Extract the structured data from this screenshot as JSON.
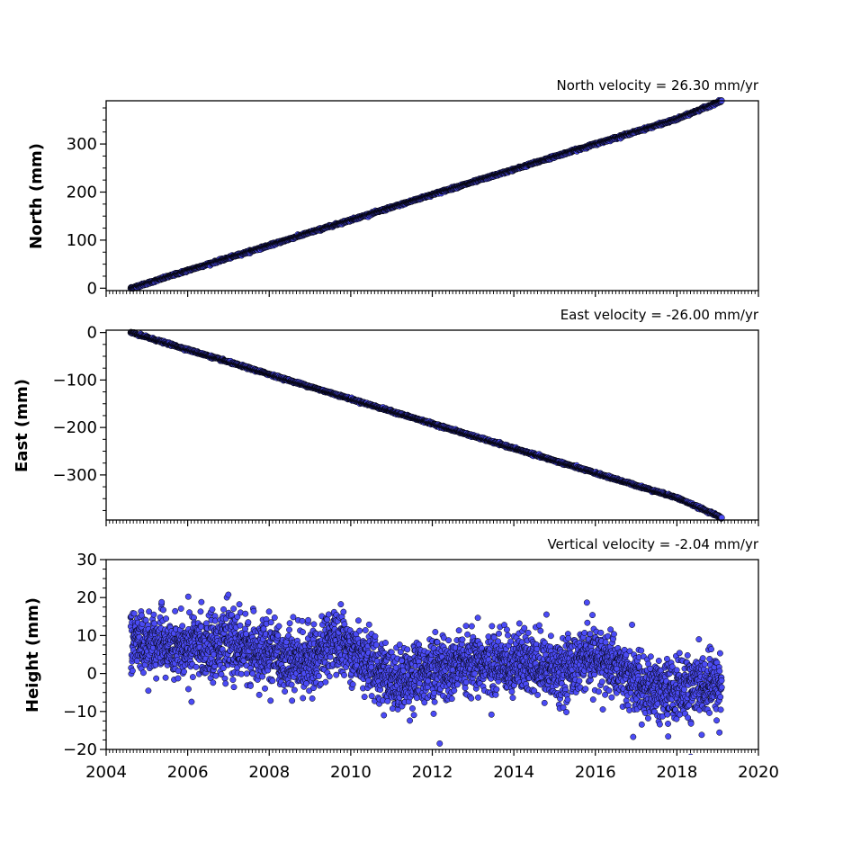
{
  "chart_data": [
    {
      "type": "scatter",
      "title": "North velocity = 26.30 mm/yr",
      "xlabel": "",
      "ylabel": "North (mm)",
      "xlim": [
        2004,
        2020
      ],
      "ylim": [
        -5,
        390
      ],
      "x_ticks": [
        2004,
        2006,
        2008,
        2010,
        2012,
        2014,
        2016,
        2018,
        2020
      ],
      "y_ticks": [
        0,
        100,
        200,
        300
      ],
      "y_tick_labels": [
        "0",
        "100",
        "200",
        "300"
      ],
      "x_range_of_data": [
        2004.6,
        2019.1
      ],
      "series": [
        {
          "x": [
            2004.6,
            2005.0,
            2006.0,
            2007.0,
            2008.0,
            2009.0,
            2010.0,
            2011.0,
            2012.0,
            2013.0,
            2014.0,
            2015.0,
            2016.0,
            2017.0,
            2018.0,
            2019.1
          ],
          "values": [
            0,
            10,
            37,
            63,
            89,
            116,
            142,
            168,
            195,
            221,
            247,
            274,
            300,
            326,
            352,
            390
          ]
        }
      ],
      "marker_color": "#4b4bf5",
      "marker_edge": "#000000",
      "grid": false
    },
    {
      "type": "scatter",
      "title": "East velocity = -26.00 mm/yr",
      "xlabel": "",
      "ylabel": "East (mm)",
      "xlim": [
        2004,
        2020
      ],
      "ylim": [
        -395,
        5
      ],
      "x_ticks": [
        2004,
        2006,
        2008,
        2010,
        2012,
        2014,
        2016,
        2018,
        2020
      ],
      "y_ticks": [
        0,
        -100,
        -200,
        -300
      ],
      "y_tick_labels": [
        "0",
        "−100",
        "−200",
        "−300"
      ],
      "x_range_of_data": [
        2004.6,
        2019.1
      ],
      "series": [
        {
          "x": [
            2004.6,
            2005.0,
            2006.0,
            2007.0,
            2008.0,
            2009.0,
            2010.0,
            2011.0,
            2012.0,
            2013.0,
            2014.0,
            2015.0,
            2016.0,
            2017.0,
            2018.0,
            2019.1
          ],
          "values": [
            0,
            -10,
            -36,
            -62,
            -88,
            -114,
            -140,
            -166,
            -192,
            -218,
            -244,
            -270,
            -296,
            -322,
            -348,
            -390
          ]
        }
      ],
      "marker_color": "#4b4bf5",
      "marker_edge": "#000000",
      "grid": false
    },
    {
      "type": "scatter",
      "title": "Vertical velocity = -2.04 mm/yr",
      "xlabel": "",
      "ylabel": "Height (mm)",
      "xlim": [
        2004,
        2020
      ],
      "ylim": [
        -20,
        30
      ],
      "x_ticks": [
        2004,
        2006,
        2008,
        2010,
        2012,
        2014,
        2016,
        2018,
        2020
      ],
      "x_tick_labels": [
        "2004",
        "2006",
        "2008",
        "2010",
        "2012",
        "2014",
        "2016",
        "2018",
        "2020"
      ],
      "y_ticks": [
        30,
        20,
        10,
        0,
        -10,
        -20
      ],
      "y_tick_labels": [
        "30",
        "20",
        "10",
        "0",
        "−10",
        "−20"
      ],
      "x_range_of_data": [
        2004.6,
        2019.1
      ],
      "series": [
        {
          "x": [
            2004.6,
            2005.0,
            2006.0,
            2007.0,
            2008.0,
            2009.0,
            2009.6,
            2010.5,
            2011.0,
            2012.0,
            2013.0,
            2014.0,
            2015.0,
            2016.0,
            2016.5,
            2017.3,
            2018.0,
            2019.1
          ],
          "values": [
            9,
            8,
            7,
            8,
            5,
            3,
            9,
            3,
            -2,
            1,
            2,
            3,
            1,
            4,
            2,
            -5,
            -4,
            -3
          ]
        }
      ],
      "scatter_spread_mm": 5,
      "marker_color": "#4b4bf5",
      "marker_edge": "#000000",
      "grid": false
    }
  ]
}
